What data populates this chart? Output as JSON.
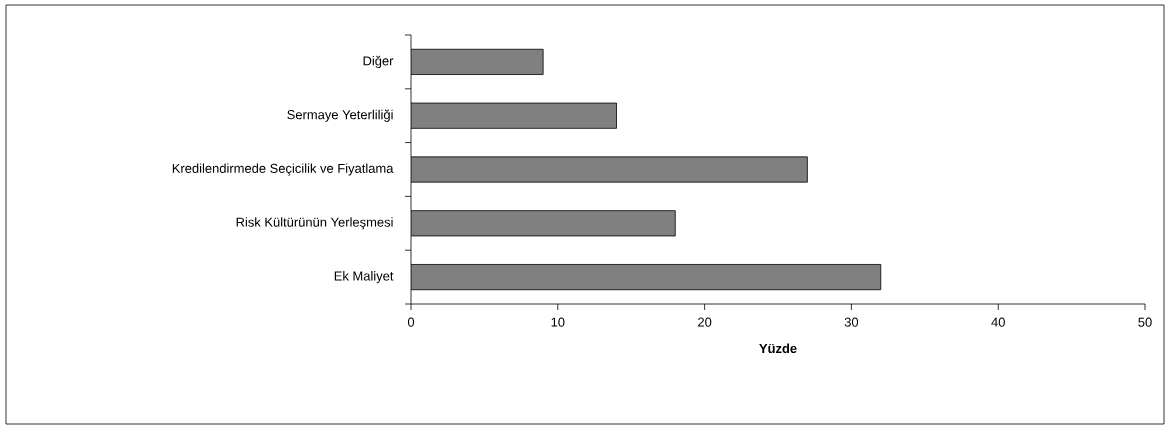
{
  "chart_data": {
    "type": "bar",
    "orientation": "horizontal",
    "xlabel": "Yüzde",
    "categories": [
      "Diğer",
      "Sermaye Yeterliliği",
      "Kredilendirmede Seçicilik ve Fiyatlama",
      "Risk Kültürünün Yerleşmesi",
      "Ek Maliyet"
    ],
    "values": [
      9,
      14,
      27,
      18,
      32
    ],
    "color": "#808080",
    "xlim": [
      0,
      50
    ],
    "xticks": [
      0,
      10,
      20,
      30,
      40,
      50
    ],
    "grid": false
  }
}
